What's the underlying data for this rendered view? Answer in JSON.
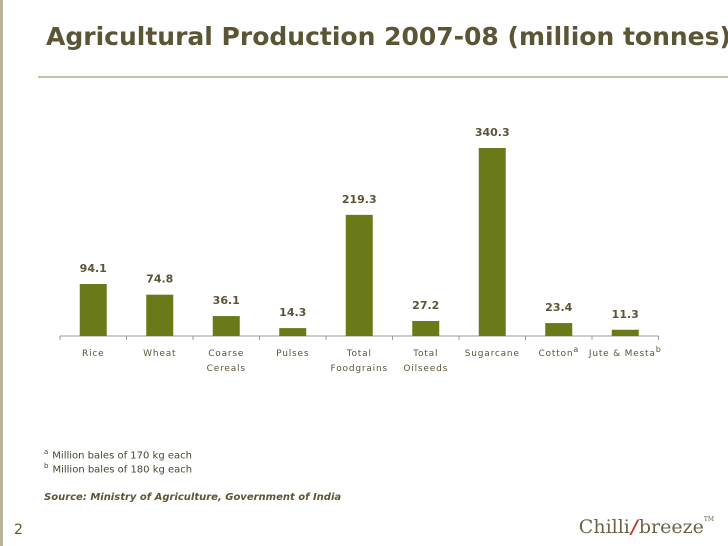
{
  "title": "Agricultural Production 2007-08 (million tonnes)",
  "colors": {
    "bar": "#6b7a18",
    "text": "#5c5535",
    "axis": "#999999"
  },
  "chart_data": {
    "type": "bar",
    "title": "Agricultural Production 2007-08 (million tonnes)",
    "xlabel": "",
    "ylabel": "",
    "ylim": [
      0,
      340.3
    ],
    "grid": false,
    "legend": "none",
    "categories": [
      {
        "lines": [
          "Rice"
        ],
        "sup": ""
      },
      {
        "lines": [
          "Wheat"
        ],
        "sup": ""
      },
      {
        "lines": [
          "Coarse",
          "Cereals"
        ],
        "sup": ""
      },
      {
        "lines": [
          "Pulses"
        ],
        "sup": ""
      },
      {
        "lines": [
          "Total",
          "Foodgrains"
        ],
        "sup": ""
      },
      {
        "lines": [
          "Total",
          "Oilseeds"
        ],
        "sup": ""
      },
      {
        "lines": [
          "Sugarcane"
        ],
        "sup": ""
      },
      {
        "lines": [
          "Cotton"
        ],
        "sup": "a"
      },
      {
        "lines": [
          "Jute & Mesta"
        ],
        "sup": "b"
      }
    ],
    "values": [
      94.1,
      74.8,
      36.1,
      14.3,
      219.3,
      27.2,
      340.3,
      23.4,
      11.3
    ],
    "labels": [
      "94.1",
      "74.8",
      "36.1",
      "14.3",
      "219.3",
      "27.2",
      "340.3",
      "23.4",
      "11.3"
    ]
  },
  "footnotes": [
    {
      "marker": "a",
      "text": "Million bales of 170 kg each"
    },
    {
      "marker": "b",
      "text": "Million bales of 180 kg each"
    }
  ],
  "source": "Source: Ministry of Agriculture, Government of India",
  "page_number": "2",
  "brand": {
    "left": "Chilli",
    "mark": "/",
    "right": "breeze",
    "tm": "TM"
  }
}
